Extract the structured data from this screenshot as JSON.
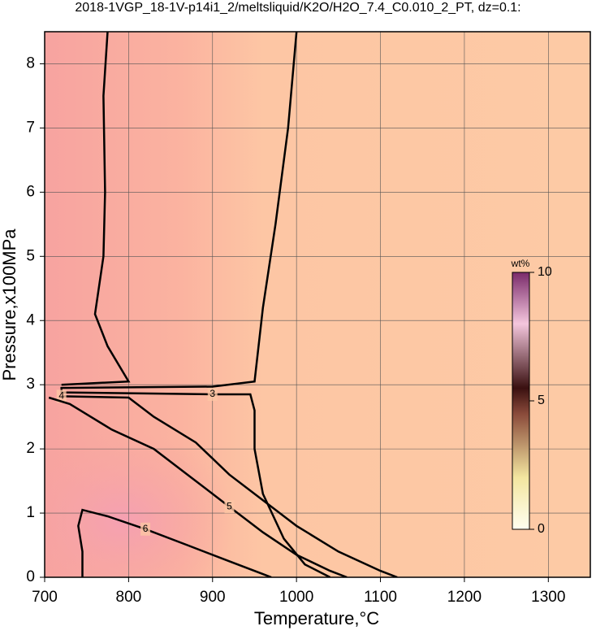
{
  "chart_data": {
    "type": "contour",
    "title": "2018-1VGP_18-1V-p14i1_2/meltsliquid/K2O/H2O_7.4_C0.010_2_PT, dz=0.1:",
    "x_label": "Temperature,°C",
    "y_label": "Pressure,x100MPa",
    "xlim": [
      700,
      1350
    ],
    "ylim": [
      0,
      8.5
    ],
    "xticks": [
      700,
      800,
      900,
      1000,
      1100,
      1200,
      1300
    ],
    "yticks": [
      0,
      1,
      2,
      3,
      4,
      5,
      6,
      7,
      8
    ],
    "grid": true,
    "series": [
      {
        "name": "3",
        "color": "#000000",
        "x": [
          1000,
          990,
          975,
          960,
          950,
          900,
          720,
          720,
          900,
          945,
          950,
          950,
          960,
          985,
          1010,
          1040
        ],
        "y": [
          8.5,
          7,
          5.5,
          4.2,
          3.05,
          2.97,
          2.95,
          2.88,
          2.85,
          2.85,
          2.6,
          2,
          1.3,
          0.6,
          0.2,
          0
        ]
      },
      {
        "name": "4",
        "color": "#000000",
        "x": [
          775,
          770,
          772,
          770,
          760,
          775,
          800,
          720,
          null,
          720,
          800,
          830,
          880,
          920,
          960,
          1000,
          1050,
          1100,
          1120
        ],
        "y": [
          8.5,
          7.5,
          6,
          5,
          4.1,
          3.6,
          3.05,
          3.0,
          null,
          2.82,
          2.8,
          2.5,
          2.1,
          1.6,
          1.2,
          0.8,
          0.4,
          0.1,
          0
        ]
      },
      {
        "name": "5",
        "color": "#000000",
        "x": [
          705,
          730,
          780,
          830,
          870,
          920,
          960,
          1000,
          1040,
          1060
        ],
        "y": [
          2.8,
          2.7,
          2.3,
          2.0,
          1.6,
          1.1,
          0.7,
          0.35,
          0.1,
          0
        ]
      },
      {
        "name": "6",
        "color": "#000000",
        "x": [
          745,
          745,
          740,
          745,
          775,
          820,
          870,
          920,
          960,
          970
        ],
        "y": [
          0,
          0.4,
          0.8,
          1.05,
          0.95,
          0.75,
          0.5,
          0.25,
          0.05,
          0
        ]
      }
    ],
    "colorbar": {
      "label": "wt%",
      "lim": [
        0,
        10
      ],
      "ticks": [
        0,
        5,
        10
      ]
    }
  }
}
